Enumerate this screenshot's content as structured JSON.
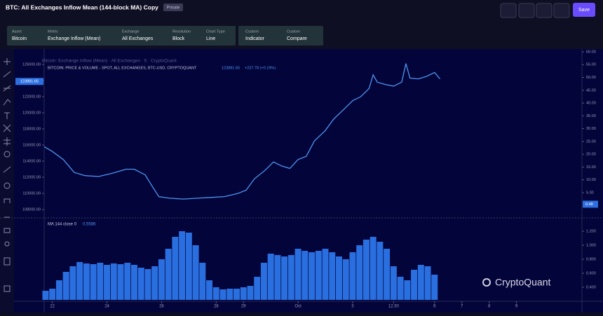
{
  "header": {
    "title": "BTC: All Exchanges Inflow Mean (144-block MA) Copy",
    "badge": "Private",
    "save": "Save"
  },
  "toolbar": [
    {
      "label": "Asset",
      "value": "Bitcoin"
    },
    {
      "label": "Metric",
      "value": "Exchange Inflow (Mean)"
    },
    {
      "label": "Exchange",
      "value": "All Exchanges"
    },
    {
      "label": "Resolution",
      "value": "Block"
    },
    {
      "label": "Chart Type",
      "value": "Line"
    },
    {
      "label": "Custom",
      "value": "Indicator"
    },
    {
      "label": "Custom",
      "value": "Compare"
    }
  ],
  "chart": {
    "legend_source": "Bitcoin: Exchange Inflow (Mean) · All Exchanges · 5 · CryptoQuant",
    "legend_series": "BITCOIN: PRICE & VOLUME - SPOT, ALL EXCHANGES, BTC-USD, CRYPTOQUANT",
    "last_price": {
      "value": 123881.65,
      "label": "123881.65"
    },
    "price_change": "+237.78 (+0.19%)",
    "indicator_name": "MA 144 close 0",
    "indicator_value": "0.5586",
    "watermark": "CryptoQuant",
    "xlim": [
      -0.3,
      19.4
    ],
    "xticks": [
      {
        "value": 0,
        "label": "22"
      },
      {
        "value": 2,
        "label": "24"
      },
      {
        "value": 4,
        "label": "26"
      },
      {
        "value": 6,
        "label": "28"
      },
      {
        "value": 7,
        "label": "29"
      },
      {
        "value": 9,
        "label": "Oct"
      },
      {
        "value": 11,
        "label": "3"
      },
      {
        "value": 12.5,
        "label": "12:30"
      },
      {
        "value": 14,
        "label": "6"
      },
      {
        "value": 15,
        "label": "7"
      },
      {
        "value": 16,
        "label": "8"
      },
      {
        "value": 17,
        "label": "9"
      }
    ],
    "ylim": [
      107050,
      127900
    ],
    "yticks": [
      {
        "value": 108000,
        "label": "108000.00"
      },
      {
        "value": 110000,
        "label": "110000.00"
      },
      {
        "value": 112000,
        "label": "112000.00"
      },
      {
        "value": 114000,
        "label": "114000.00"
      },
      {
        "value": 116000,
        "label": "116000.00"
      },
      {
        "value": 118000,
        "label": "118000.00"
      },
      {
        "value": 120000,
        "label": "120000.00"
      },
      {
        "value": 122000,
        "label": "122000.00"
      },
      {
        "value": 124000,
        "label": "124000.00"
      },
      {
        "value": 126000,
        "label": "126000.00"
      }
    ],
    "y2lim": [
      -4.6,
      61.1
    ],
    "y2ticks": [
      {
        "value": 5,
        "label": "5.00"
      },
      {
        "value": 10,
        "label": "10.00"
      },
      {
        "value": 15,
        "label": "15.00"
      },
      {
        "value": 20,
        "label": "20.00"
      },
      {
        "value": 25,
        "label": "25.00"
      },
      {
        "value": 30,
        "label": "30.00"
      },
      {
        "value": 35,
        "label": "35.00"
      },
      {
        "value": 40,
        "label": "40.00"
      },
      {
        "value": 45,
        "label": "45.00"
      },
      {
        "value": 50,
        "label": "50.00"
      },
      {
        "value": 55,
        "label": "55.00"
      },
      {
        "value": 60,
        "label": "60.00"
      }
    ],
    "y2_marker": {
      "value": 0.48,
      "label": "0.48"
    },
    "price": {
      "color": "#4d94f0",
      "x": [
        -0.3,
        0,
        0.4,
        0.8,
        1.2,
        1.7,
        2.2,
        2.7,
        3,
        3.4,
        3.6,
        3.9,
        4.3,
        4.8,
        5.3,
        5.8,
        6.3,
        6.8,
        7.1,
        7.4,
        7.8,
        8.1,
        8.4,
        8.7,
        9.0,
        9.3,
        9.6,
        10.0,
        10.3,
        10.7,
        11.0,
        11.3,
        11.6,
        11.75,
        11.9,
        12.2,
        12.5,
        12.8,
        12.95,
        13.1,
        13.4,
        13.7,
        14.0,
        14.2
      ],
      "values": [
        115800,
        115200,
        114200,
        112600,
        112200,
        112100,
        112500,
        113000,
        113000,
        112300,
        111200,
        109600,
        109400,
        109300,
        109400,
        109500,
        109600,
        110000,
        110400,
        111800,
        112900,
        113900,
        113400,
        113100,
        114200,
        114600,
        116500,
        117800,
        119200,
        120500,
        121500,
        122000,
        123000,
        124700,
        123800,
        123500,
        123300,
        123800,
        126100,
        124300,
        124200,
        124500,
        125000,
        124200
      ]
    },
    "ma": {
      "color": "#2a6fe0",
      "ylim": [
        0.22,
        1.38
      ],
      "yticks": [
        {
          "value": 0.4,
          "label": "0.400"
        },
        {
          "value": 0.6,
          "label": "0.600"
        },
        {
          "value": 0.8,
          "label": "0.800"
        },
        {
          "value": 1.0,
          "label": "1.000"
        },
        {
          "value": 1.2,
          "label": "1.200"
        }
      ],
      "x": [
        -0.25,
        0,
        0.25,
        0.5,
        0.75,
        1,
        1.25,
        1.5,
        1.75,
        2,
        2.25,
        2.5,
        2.75,
        3,
        3.25,
        3.5,
        3.75,
        4,
        4.25,
        4.5,
        4.75,
        5,
        5.25,
        5.5,
        5.75,
        6,
        6.25,
        6.5,
        6.75,
        7,
        7.25,
        7.5,
        7.75,
        8,
        8.25,
        8.5,
        8.75,
        9,
        9.25,
        9.5,
        9.75,
        10,
        10.25,
        10.5,
        10.75,
        11,
        11.25,
        11.5,
        11.75,
        12,
        12.25,
        12.5,
        12.75,
        13,
        13.25,
        13.5,
        13.75,
        14
      ],
      "values": [
        0.35,
        0.38,
        0.5,
        0.62,
        0.7,
        0.76,
        0.74,
        0.73,
        0.75,
        0.72,
        0.74,
        0.73,
        0.75,
        0.72,
        0.68,
        0.66,
        0.7,
        0.8,
        0.95,
        1.12,
        1.2,
        1.18,
        1.0,
        0.75,
        0.5,
        0.4,
        0.37,
        0.38,
        0.38,
        0.4,
        0.42,
        0.55,
        0.75,
        0.88,
        0.86,
        0.84,
        0.86,
        0.95,
        0.92,
        0.9,
        0.92,
        0.95,
        0.9,
        0.84,
        0.8,
        0.9,
        1.0,
        1.08,
        1.12,
        1.05,
        0.95,
        0.7,
        0.55,
        0.5,
        0.65,
        0.72,
        0.7,
        0.58
      ]
    }
  }
}
